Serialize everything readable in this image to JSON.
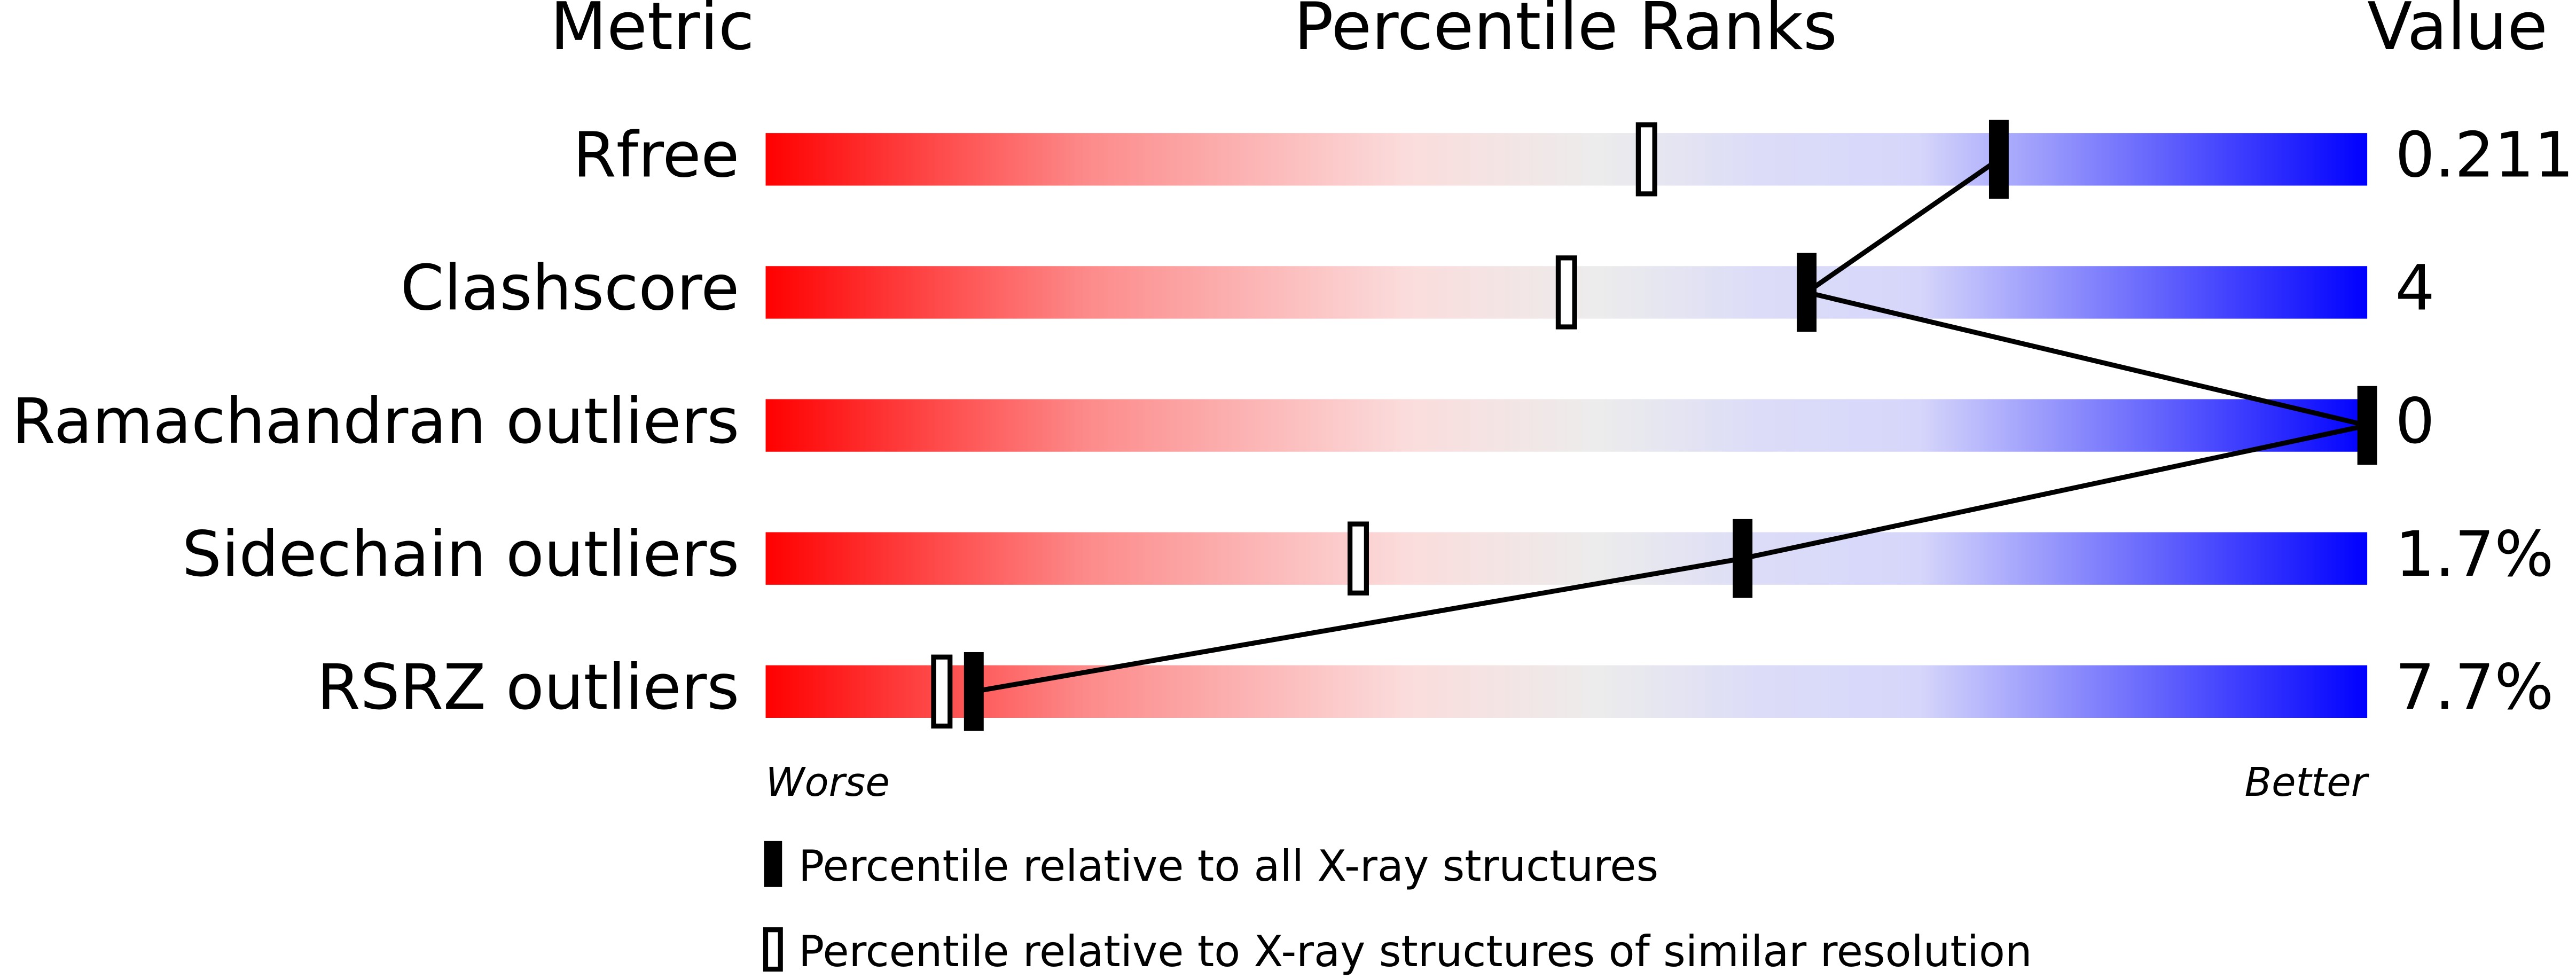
{
  "chart_data": {
    "type": "percentile",
    "headers": [
      "Metric",
      "Percentile Ranks",
      "Value"
    ],
    "categories": [
      "Rfree",
      "Clashscore",
      "Ramachandran outliers",
      "Sidechain outliers",
      "RSRZ outliers"
    ],
    "metric_values": [
      "0.211",
      "4",
      "0",
      "1.7%",
      "7.7%"
    ],
    "series": [
      {
        "name": "Percentile relative to all X-ray structures",
        "color": "#000000",
        "values": [
          77,
          65,
          100,
          61,
          13
        ]
      },
      {
        "name": "Percentile relative to X-ray structures of similar resolution",
        "color": "#ffffff",
        "values": [
          55,
          50,
          null,
          37,
          11
        ]
      }
    ],
    "xlim": [
      0,
      100
    ],
    "x_end_labels": [
      "Worse",
      "Better"
    ]
  }
}
